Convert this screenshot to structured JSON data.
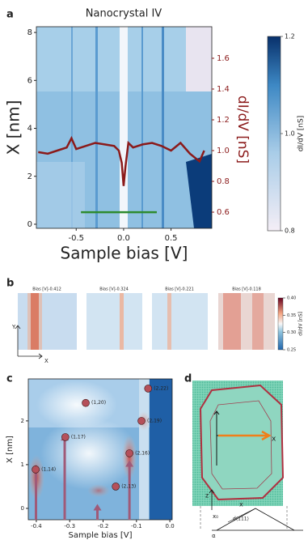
{
  "chart_data": [
    {
      "type": "line",
      "panel_label": "a",
      "title": "Nanocrystal IV",
      "xlabel": "Sample bias [V]",
      "ylabel": "X [nm]",
      "y2label": "dI/dV [nS]",
      "xlim": [
        -0.92,
        0.93
      ],
      "xticks": [
        -0.5,
        {
          "value": 0,
          "label": "0.0"
        },
        0.5
      ],
      "ylim": [
        -0.17,
        8.24
      ],
      "yticks": [
        0,
        2,
        4,
        6,
        8
      ],
      "y2lim": [
        0.495,
        1.805
      ],
      "y2ticks": [
        0.6,
        0.8,
        {
          "value": 1,
          "label": "1.0"
        },
        1.2,
        1.4,
        1.6
      ],
      "x": [
        -0.9,
        -0.8,
        -0.7,
        -0.6,
        -0.55,
        -0.5,
        -0.4,
        -0.3,
        -0.2,
        -0.1,
        -0.05,
        -0.02,
        0,
        0.02,
        0.05,
        0.1,
        0.2,
        0.3,
        0.4,
        0.5,
        0.6,
        0.7,
        0.8,
        0.85
      ],
      "series": [
        {
          "color": "#8b1a1a",
          "axis": "y2",
          "values": [
            0.99,
            0.98,
            1.0,
            1.02,
            1.08,
            1.01,
            1.03,
            1.05,
            1.04,
            1.03,
            1.0,
            0.92,
            0.77,
            0.9,
            1.05,
            1.02,
            1.04,
            1.05,
            1.03,
            1.0,
            1.05,
            0.98,
            0.93,
            1.0
          ]
        }
      ],
      "marker_line": {
        "color": "#2e8b2e",
        "x": [
          -0.45,
          0.35
        ],
        "y": 0.5
      },
      "colorbar": {
        "label": "dI/dV [nS]",
        "lim": [
          0.8,
          1.2
        ],
        "ticks": [
          0.8,
          {
            "value": 1,
            "label": "1.0"
          },
          1.2
        ]
      }
    },
    {
      "type": "heatmap",
      "panel_label": "b",
      "titles": [
        "Bias [V]-0.412",
        "Bias [V]-0.324",
        "Bias [V]-0.221",
        "Bias [V]-0.118"
      ],
      "axis_labels": [
        "Y",
        "X"
      ],
      "colorbar": {
        "label": "dI/dV [nS]",
        "lim": [
          0.25,
          0.4
        ],
        "ticks": [
          0.25,
          {
            "value": 0.3,
            "label": "0.30"
          },
          0.35,
          {
            "value": 0.4,
            "label": "0.40"
          }
        ]
      }
    },
    {
      "type": "scatter",
      "panel_label": "c",
      "xlabel": "Sample bias [V]",
      "ylabel": "X [nm]",
      "xlim": [
        -0.424,
        0.007
      ],
      "xticks": [
        -0.4,
        -0.3,
        -0.2,
        -0.1,
        {
          "value": 0,
          "label": "0.0"
        }
      ],
      "ylim": [
        -0.26,
        2.96
      ],
      "yticks": [
        0,
        1,
        2
      ],
      "x": [
        -0.402,
        -0.313,
        -0.252,
        -0.162,
        -0.121,
        -0.085,
        -0.065
      ],
      "values": [
        0.89,
        1.63,
        2.41,
        0.5,
        1.26,
        2.0,
        2.74
      ],
      "point_labels": [
        "(1,14)",
        "(1,17)",
        "(1,20)",
        "(2,13)",
        "(2,16)",
        "(2,19)",
        "(2,22)"
      ],
      "color": "#b5505a",
      "arrows": {
        "color": "#a05a78",
        "x": [
          -0.401,
          -0.315,
          -0.217,
          -0.121
        ],
        "y": [
          1.0,
          1.7,
          0.1,
          1.1
        ]
      }
    },
    {
      "type": "diagram",
      "panel_label": "d",
      "labels": [
        "x",
        "z",
        "x",
        "x₀",
        "d⟨111⟩",
        "α"
      ]
    }
  ]
}
